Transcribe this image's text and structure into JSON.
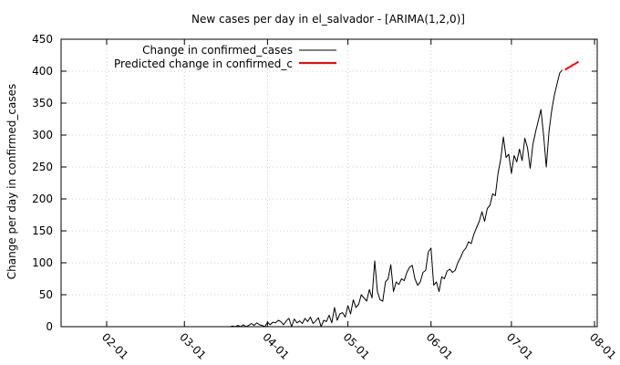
{
  "chart_data": {
    "type": "line",
    "title": "New cases per day in el_salvador -  [ARIMA(1,2,0)]",
    "xlabel": "",
    "ylabel": "Change per day in confirmed_cases",
    "ylim": [
      0,
      450
    ],
    "xlim": [
      "2020-01-15",
      "2020-08-02"
    ],
    "yticks": [
      0,
      50,
      100,
      150,
      200,
      250,
      300,
      350,
      400,
      450
    ],
    "xticks": [
      {
        "date": "2020-02-01",
        "label": "02-01"
      },
      {
        "date": "2020-03-01",
        "label": "03-01"
      },
      {
        "date": "2020-04-01",
        "label": "04-01"
      },
      {
        "date": "2020-05-01",
        "label": "05-01"
      },
      {
        "date": "2020-06-01",
        "label": "06-01"
      },
      {
        "date": "2020-07-01",
        "label": "07-01"
      },
      {
        "date": "2020-08-01",
        "label": "08-01"
      }
    ],
    "grid": true,
    "legend_position": "top-right",
    "series": [
      {
        "name": "Change in confirmed_cases",
        "color": "#000000",
        "points": [
          [
            "2020-03-18",
            0
          ],
          [
            "2020-03-19",
            1
          ],
          [
            "2020-03-20",
            0
          ],
          [
            "2020-03-21",
            2
          ],
          [
            "2020-03-22",
            0
          ],
          [
            "2020-03-23",
            3
          ],
          [
            "2020-03-24",
            0
          ],
          [
            "2020-03-25",
            2
          ],
          [
            "2020-03-26",
            5
          ],
          [
            "2020-03-27",
            2
          ],
          [
            "2020-03-28",
            6
          ],
          [
            "2020-03-29",
            3
          ],
          [
            "2020-03-30",
            2
          ],
          [
            "2020-03-31",
            0
          ],
          [
            "2020-04-01",
            7
          ],
          [
            "2020-04-02",
            3
          ],
          [
            "2020-04-03",
            7
          ],
          [
            "2020-04-04",
            6
          ],
          [
            "2020-04-05",
            10
          ],
          [
            "2020-04-06",
            8
          ],
          [
            "2020-04-07",
            3
          ],
          [
            "2020-04-08",
            9
          ],
          [
            "2020-04-09",
            13
          ],
          [
            "2020-04-10",
            0
          ],
          [
            "2020-04-11",
            12
          ],
          [
            "2020-04-12",
            6
          ],
          [
            "2020-04-13",
            9
          ],
          [
            "2020-04-14",
            5
          ],
          [
            "2020-04-15",
            13
          ],
          [
            "2020-04-16",
            8
          ],
          [
            "2020-04-17",
            15
          ],
          [
            "2020-04-18",
            5
          ],
          [
            "2020-04-19",
            9
          ],
          [
            "2020-04-20",
            14
          ],
          [
            "2020-04-21",
            0
          ],
          [
            "2020-04-22",
            10
          ],
          [
            "2020-04-23",
            8
          ],
          [
            "2020-04-24",
            18
          ],
          [
            "2020-04-25",
            6
          ],
          [
            "2020-04-26",
            30
          ],
          [
            "2020-04-27",
            10
          ],
          [
            "2020-04-28",
            20
          ],
          [
            "2020-04-29",
            22
          ],
          [
            "2020-04-30",
            15
          ],
          [
            "2020-05-01",
            33
          ],
          [
            "2020-05-02",
            20
          ],
          [
            "2020-05-03",
            42
          ],
          [
            "2020-05-04",
            30
          ],
          [
            "2020-05-05",
            35
          ],
          [
            "2020-05-06",
            50
          ],
          [
            "2020-05-07",
            45
          ],
          [
            "2020-05-08",
            40
          ],
          [
            "2020-05-09",
            58
          ],
          [
            "2020-05-10",
            45
          ],
          [
            "2020-05-11",
            103
          ],
          [
            "2020-05-12",
            55
          ],
          [
            "2020-05-13",
            42
          ],
          [
            "2020-05-14",
            40
          ],
          [
            "2020-05-15",
            70
          ],
          [
            "2020-05-16",
            75
          ],
          [
            "2020-05-17",
            97
          ],
          [
            "2020-05-18",
            55
          ],
          [
            "2020-05-19",
            70
          ],
          [
            "2020-05-20",
            66
          ],
          [
            "2020-05-21",
            75
          ],
          [
            "2020-05-22",
            72
          ],
          [
            "2020-05-23",
            85
          ],
          [
            "2020-05-24",
            93
          ],
          [
            "2020-05-25",
            96
          ],
          [
            "2020-05-26",
            75
          ],
          [
            "2020-05-27",
            65
          ],
          [
            "2020-05-28",
            70
          ],
          [
            "2020-05-29",
            85
          ],
          [
            "2020-05-30",
            88
          ],
          [
            "2020-05-31",
            117
          ],
          [
            "2020-06-01",
            123
          ],
          [
            "2020-06-02",
            65
          ],
          [
            "2020-06-03",
            70
          ],
          [
            "2020-06-04",
            55
          ],
          [
            "2020-06-05",
            78
          ],
          [
            "2020-06-06",
            75
          ],
          [
            "2020-06-07",
            87
          ],
          [
            "2020-06-08",
            90
          ],
          [
            "2020-06-09",
            85
          ],
          [
            "2020-06-10",
            88
          ],
          [
            "2020-06-11",
            100
          ],
          [
            "2020-06-12",
            108
          ],
          [
            "2020-06-13",
            118
          ],
          [
            "2020-06-14",
            123
          ],
          [
            "2020-06-15",
            133
          ],
          [
            "2020-06-16",
            130
          ],
          [
            "2020-06-17",
            145
          ],
          [
            "2020-06-18",
            155
          ],
          [
            "2020-06-19",
            165
          ],
          [
            "2020-06-20",
            180
          ],
          [
            "2020-06-21",
            165
          ],
          [
            "2020-06-22",
            185
          ],
          [
            "2020-06-23",
            190
          ],
          [
            "2020-06-24",
            208
          ],
          [
            "2020-06-25",
            205
          ],
          [
            "2020-06-26",
            240
          ],
          [
            "2020-06-27",
            262
          ],
          [
            "2020-06-28",
            297
          ],
          [
            "2020-06-29",
            265
          ],
          [
            "2020-06-30",
            270
          ],
          [
            "2020-07-01",
            240
          ],
          [
            "2020-07-02",
            268
          ],
          [
            "2020-07-03",
            258
          ],
          [
            "2020-07-04",
            278
          ],
          [
            "2020-07-05",
            260
          ],
          [
            "2020-07-06",
            295
          ],
          [
            "2020-07-07",
            280
          ],
          [
            "2020-07-08",
            248
          ],
          [
            "2020-07-09",
            285
          ],
          [
            "2020-07-10",
            305
          ],
          [
            "2020-07-11",
            322
          ],
          [
            "2020-07-12",
            340
          ],
          [
            "2020-07-13",
            300
          ],
          [
            "2020-07-14",
            250
          ],
          [
            "2020-07-15",
            305
          ],
          [
            "2020-07-16",
            338
          ],
          [
            "2020-07-17",
            362
          ],
          [
            "2020-07-18",
            380
          ],
          [
            "2020-07-19",
            397
          ],
          [
            "2020-07-20",
            402
          ]
        ]
      },
      {
        "name": "Predicted change in confirmed_c",
        "color": "#ff0000",
        "points": [
          [
            "2020-07-21",
            402
          ],
          [
            "2020-07-22",
            405
          ],
          [
            "2020-07-23",
            407
          ],
          [
            "2020-07-24",
            410
          ],
          [
            "2020-07-25",
            412
          ],
          [
            "2020-07-26",
            415
          ]
        ]
      }
    ]
  }
}
